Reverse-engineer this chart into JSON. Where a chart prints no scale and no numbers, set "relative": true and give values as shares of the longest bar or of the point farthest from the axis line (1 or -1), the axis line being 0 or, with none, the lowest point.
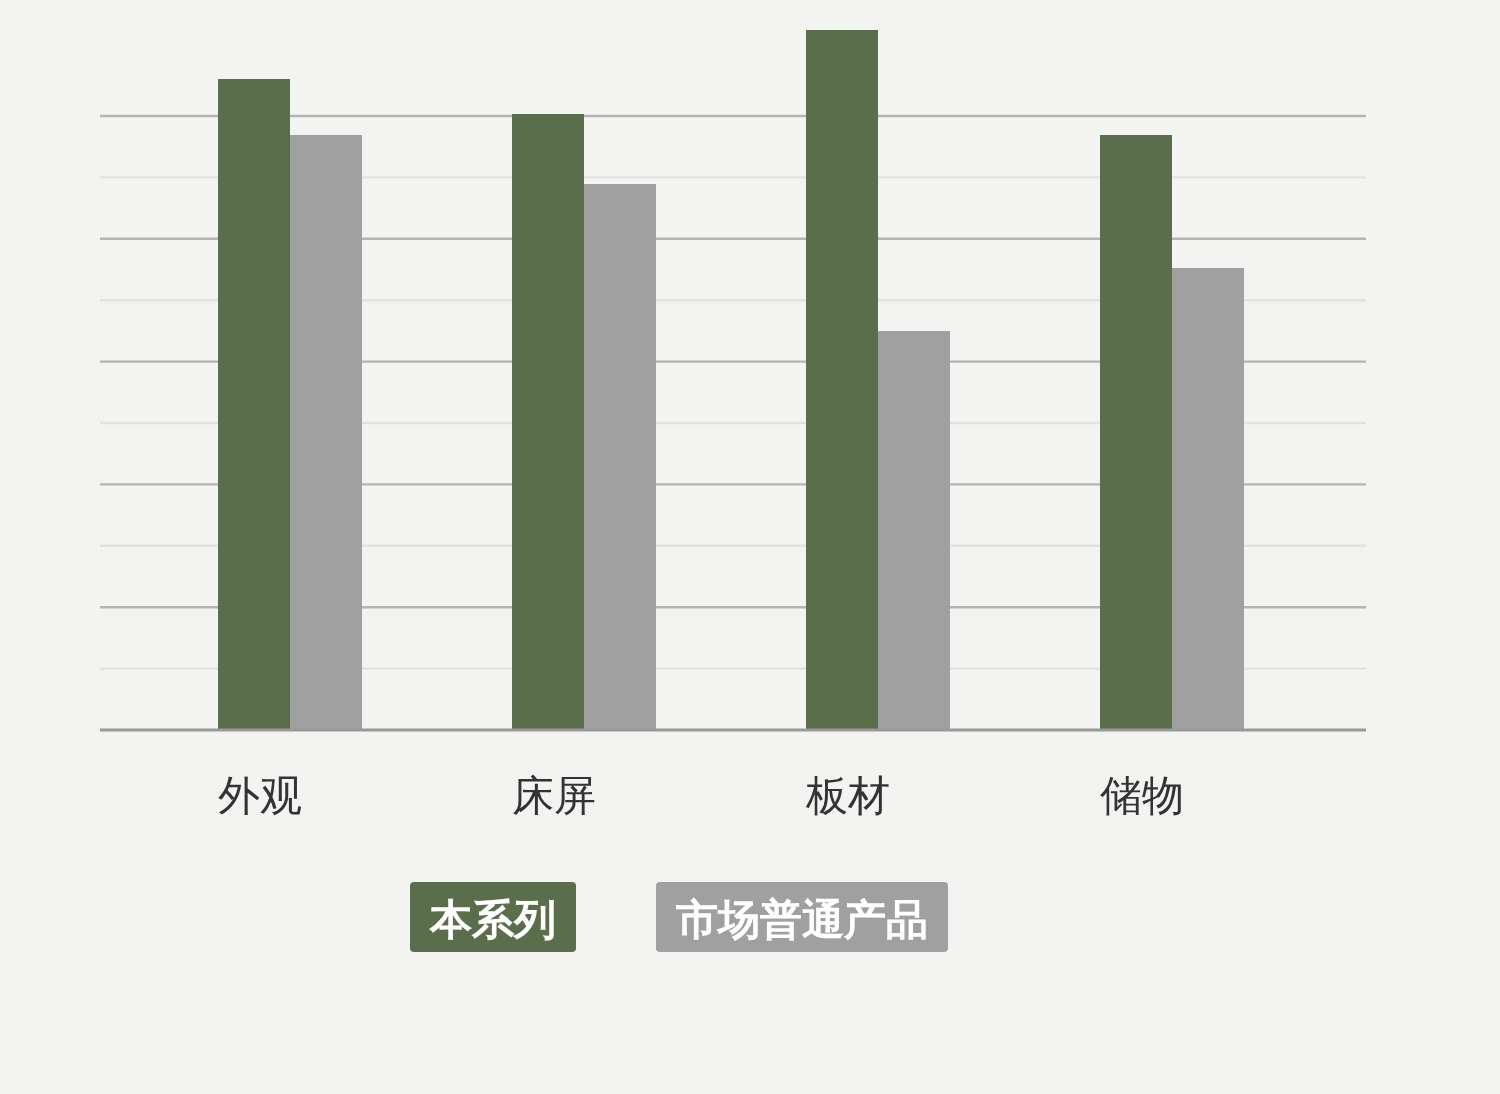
{
  "chart_data": {
    "type": "bar",
    "relative": true,
    "categories": [
      "外观",
      "床屏",
      "板材",
      "储物"
    ],
    "series": [
      {
        "name": "本系列",
        "color": "#5a6e4b",
        "values": [
          0.93,
          0.88,
          1,
          0.85
        ]
      },
      {
        "name": "市场普通产品",
        "color": "#a0a0a0",
        "values": [
          0.85,
          0.78,
          0.57,
          0.66
        ]
      }
    ],
    "grid": true,
    "legend": "bottom"
  }
}
